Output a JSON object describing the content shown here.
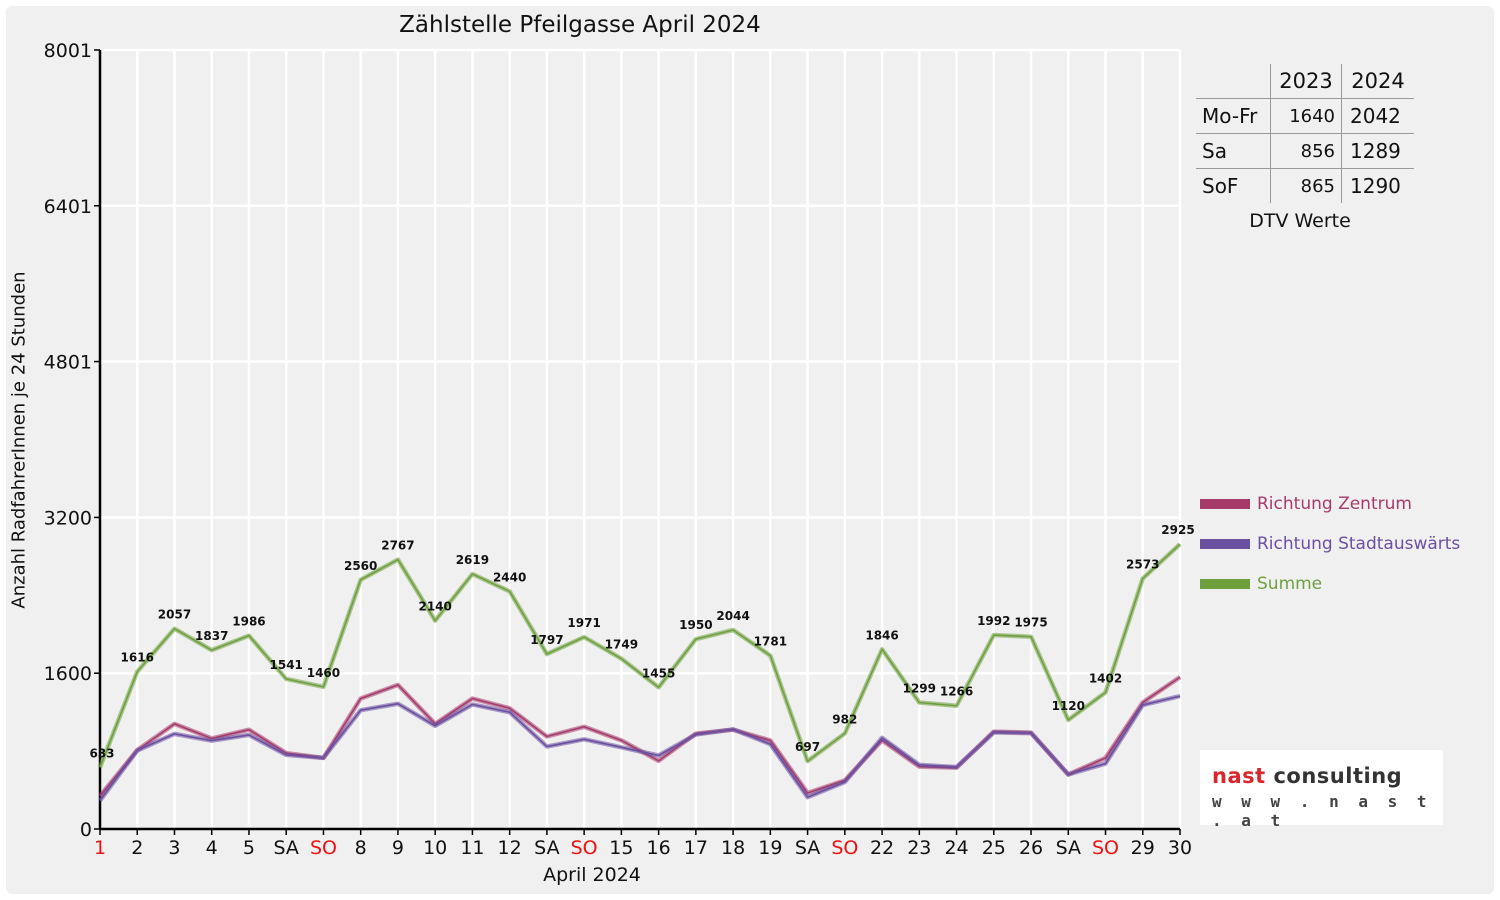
{
  "chart_data": {
    "type": "line",
    "title": "Zählstelle Pfeilgasse April 2024",
    "xlabel": "April 2024",
    "ylabel": "Anzahl RadfahrerInnen je 24 Stunden",
    "ylim": [
      0,
      8001
    ],
    "yticks": [
      "0",
      "1600",
      "3200",
      "4801",
      "6401",
      "8001"
    ],
    "categories": [
      "1",
      "2",
      "3",
      "4",
      "5",
      "SA",
      "SO",
      "8",
      "9",
      "10",
      "11",
      "12",
      "SA",
      "SO",
      "15",
      "16",
      "17",
      "18",
      "19",
      "SA",
      "SO",
      "22",
      "23",
      "24",
      "25",
      "26",
      "SA",
      "SO",
      "29",
      "30"
    ],
    "red_categories": [
      0,
      6,
      13,
      20,
      27
    ],
    "grid": true,
    "legend_position": "right",
    "series": [
      {
        "name": "Richtung Zentrum",
        "color": "#a63b6b",
        "values": [
          340,
          810,
          1080,
          930,
          1020,
          780,
          730,
          1340,
          1480,
          1080,
          1340,
          1240,
          950,
          1050,
          910,
          700,
          980,
          1020,
          910,
          370,
          500,
          910,
          640,
          630,
          1000,
          990,
          560,
          730,
          1300,
          1560
        ]
      },
      {
        "name": "Richtung Stadtauswärts",
        "color": "#6b4fa0",
        "values": [
          293,
          806,
          977,
          907,
          966,
          761,
          730,
          1220,
          1287,
          1060,
          1279,
          1200,
          847,
          921,
          839,
          755,
          970,
          1024,
          871,
          327,
          482,
          936,
          659,
          636,
          992,
          985,
          560,
          672,
          1273,
          1365
        ]
      },
      {
        "name": "Summe",
        "color": "#6fa040",
        "labeled": true,
        "values": [
          633,
          1616,
          2057,
          1837,
          1986,
          1541,
          1460,
          2560,
          2767,
          2140,
          2619,
          2440,
          1797,
          1971,
          1749,
          1455,
          1950,
          2044,
          1781,
          697,
          982,
          1846,
          1299,
          1266,
          1992,
          1975,
          1120,
          1402,
          2573,
          2925
        ]
      }
    ]
  },
  "dtv_table": {
    "headers": [
      "2023",
      "2024"
    ],
    "rows": [
      {
        "label": "Mo-Fr",
        "v2023": "1640",
        "v2024": "2042"
      },
      {
        "label": "Sa",
        "v2023": "856",
        "v2024": "1289"
      },
      {
        "label": "SoF",
        "v2023": "865",
        "v2024": "1290"
      }
    ],
    "caption": "DTV Werte"
  },
  "logo": {
    "word1": "nast",
    "word2": "consulting",
    "url": "w w w . n a s t . a t"
  },
  "colors": {
    "background": "#f0f0f0",
    "grid": "#ffffff",
    "red_label": "#ee1111"
  }
}
